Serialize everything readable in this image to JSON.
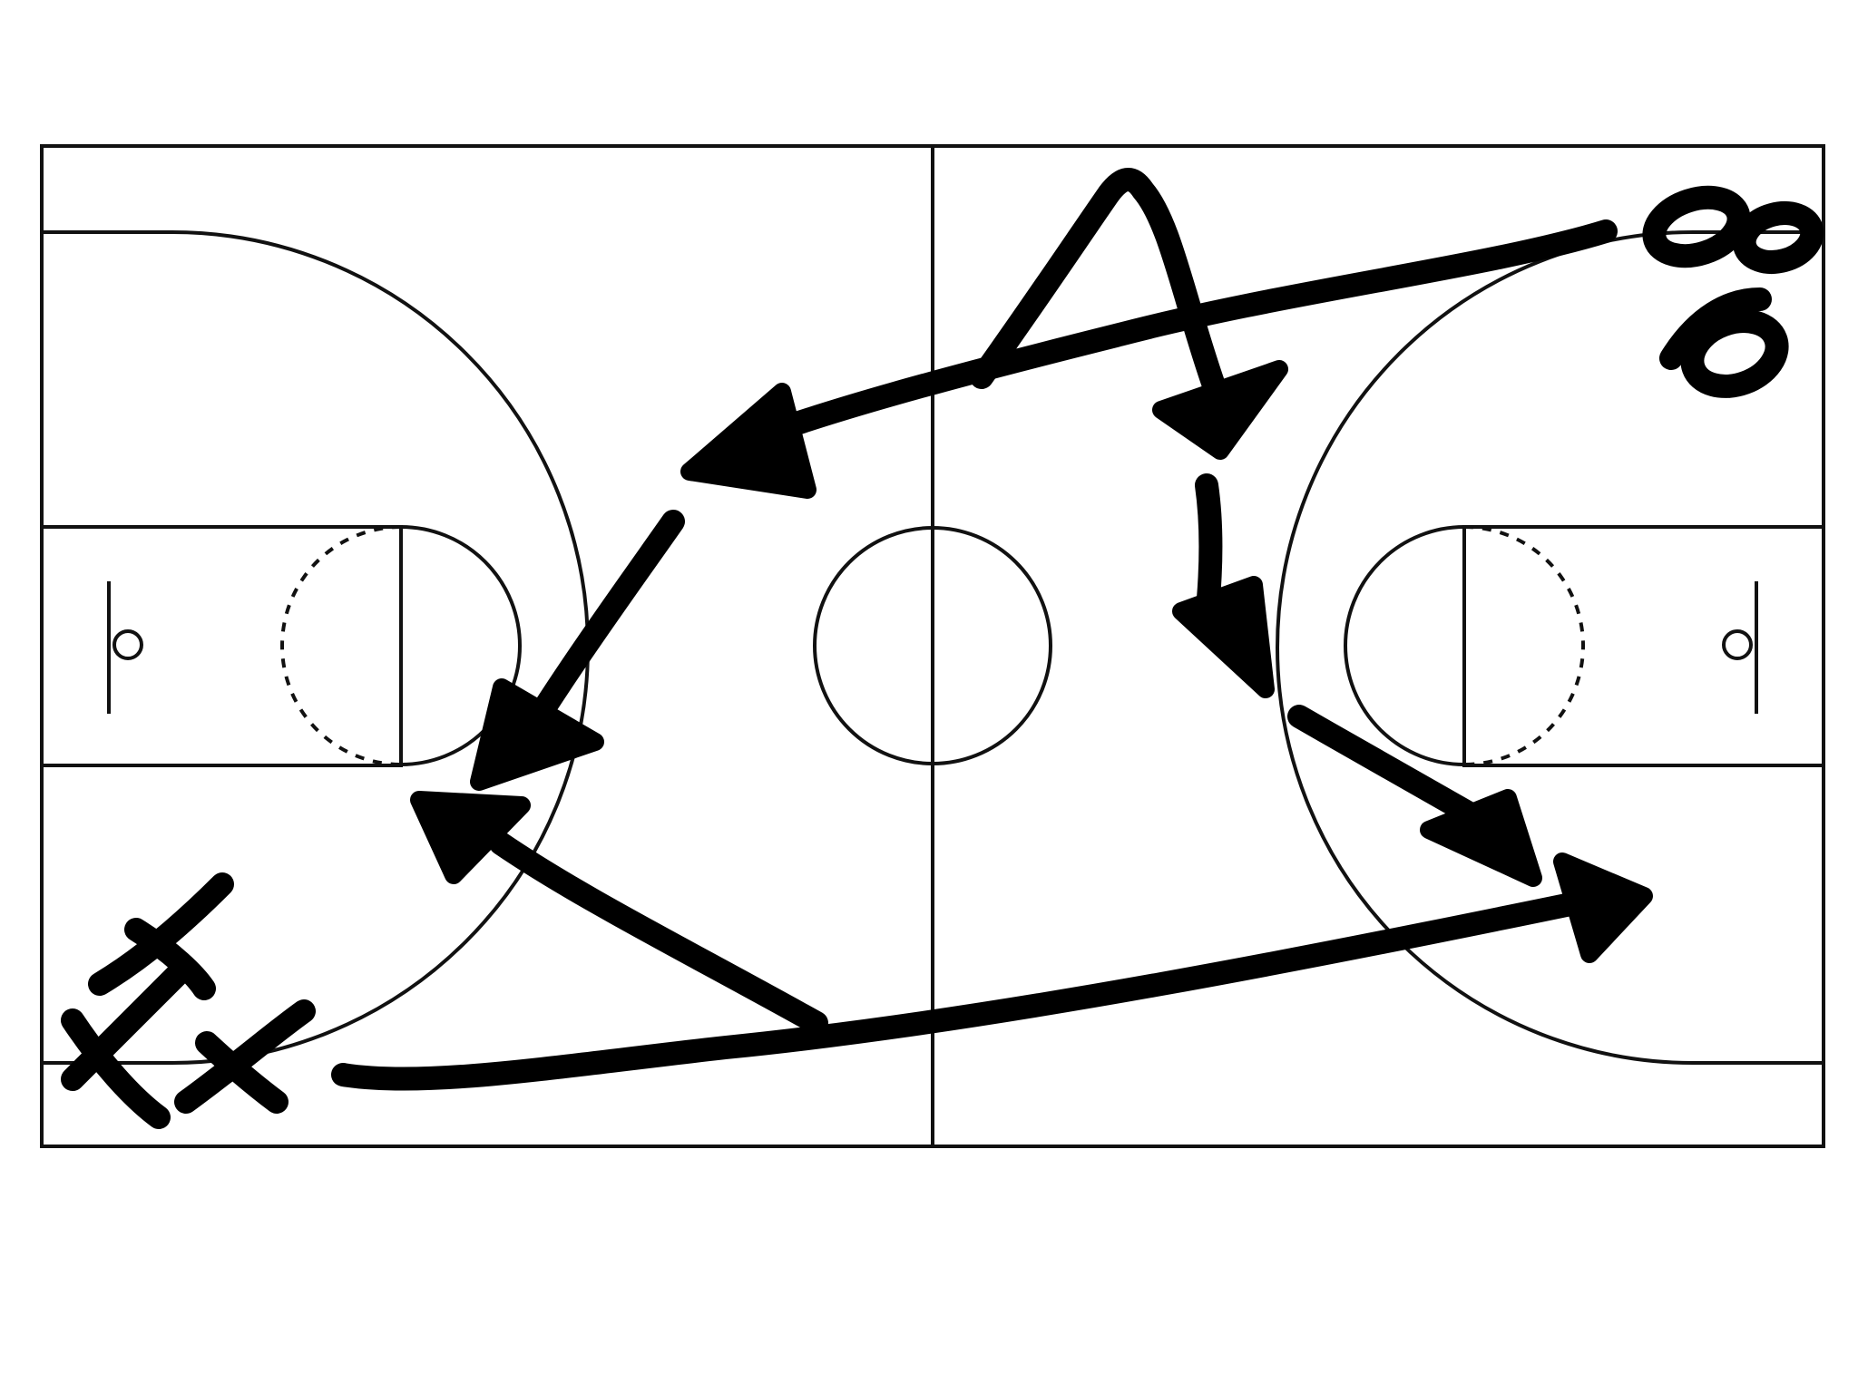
{
  "diagram": {
    "type": "basketball-play-sketch",
    "court": "full-court",
    "colors": {
      "background": "#ffffff",
      "court_lines": "#111111",
      "ink": "#000000"
    },
    "handwritten_marks": [
      "88",
      "XX"
    ]
  }
}
